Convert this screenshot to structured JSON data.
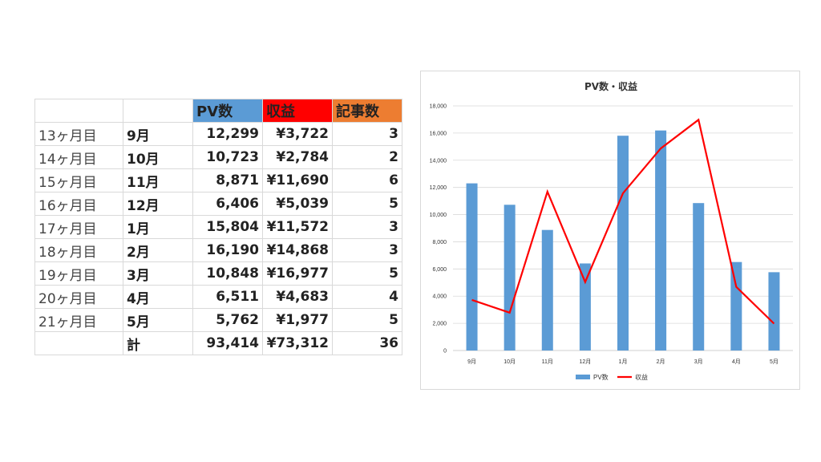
{
  "table": {
    "header": [
      "",
      "",
      "PV数",
      "収益",
      "記事数"
    ],
    "header_colors": [
      "#ffffff",
      "#ffffff",
      "#5b9bd5",
      "#ff0000",
      "#ed7d31"
    ],
    "rows": [
      [
        "13ヶ月目",
        "9月",
        "12,299",
        "¥3,722",
        "3"
      ],
      [
        "14ヶ月目",
        "10月",
        "10,723",
        "¥2,784",
        "2"
      ],
      [
        "15ヶ月目",
        "11月",
        "8,871",
        "¥11,690",
        "6"
      ],
      [
        "16ヶ月目",
        "12月",
        "6,406",
        "¥5,039",
        "5"
      ],
      [
        "17ヶ月目",
        "1月",
        "15,804",
        "¥11,572",
        "3"
      ],
      [
        "18ヶ月目",
        "2月",
        "16,190",
        "¥14,868",
        "3"
      ],
      [
        "19ヶ月目",
        "3月",
        "10,848",
        "¥16,977",
        "5"
      ],
      [
        "20ヶ月目",
        "4月",
        "6,511",
        "¥4,683",
        "4"
      ],
      [
        "21ヶ月目",
        "5月",
        "5,762",
        "¥1,977",
        "5"
      ]
    ],
    "total": [
      "",
      "計",
      "93,414",
      "¥73,312",
      "36"
    ]
  },
  "chart_data": {
    "type": "bar",
    "title": "PV数・収益",
    "categories": [
      "9月",
      "10月",
      "11月",
      "12月",
      "1月",
      "2月",
      "3月",
      "4月",
      "5月"
    ],
    "series": [
      {
        "name": "PV数",
        "type": "bar",
        "color": "#5b9bd5",
        "values": [
          12299,
          10723,
          8871,
          6406,
          15804,
          16190,
          10848,
          6511,
          5762
        ]
      },
      {
        "name": "収益",
        "type": "line",
        "color": "#ff0000",
        "values": [
          3722,
          2784,
          11690,
          5039,
          11572,
          14868,
          16977,
          4683,
          1977
        ]
      }
    ],
    "ylim": [
      0,
      18000
    ],
    "yticks": [
      "0",
      "2,000",
      "4,000",
      "6,000",
      "8,000",
      "10,000",
      "12,000",
      "14,000",
      "16,000",
      "18,000"
    ],
    "grid": true,
    "legend": "bottom"
  }
}
